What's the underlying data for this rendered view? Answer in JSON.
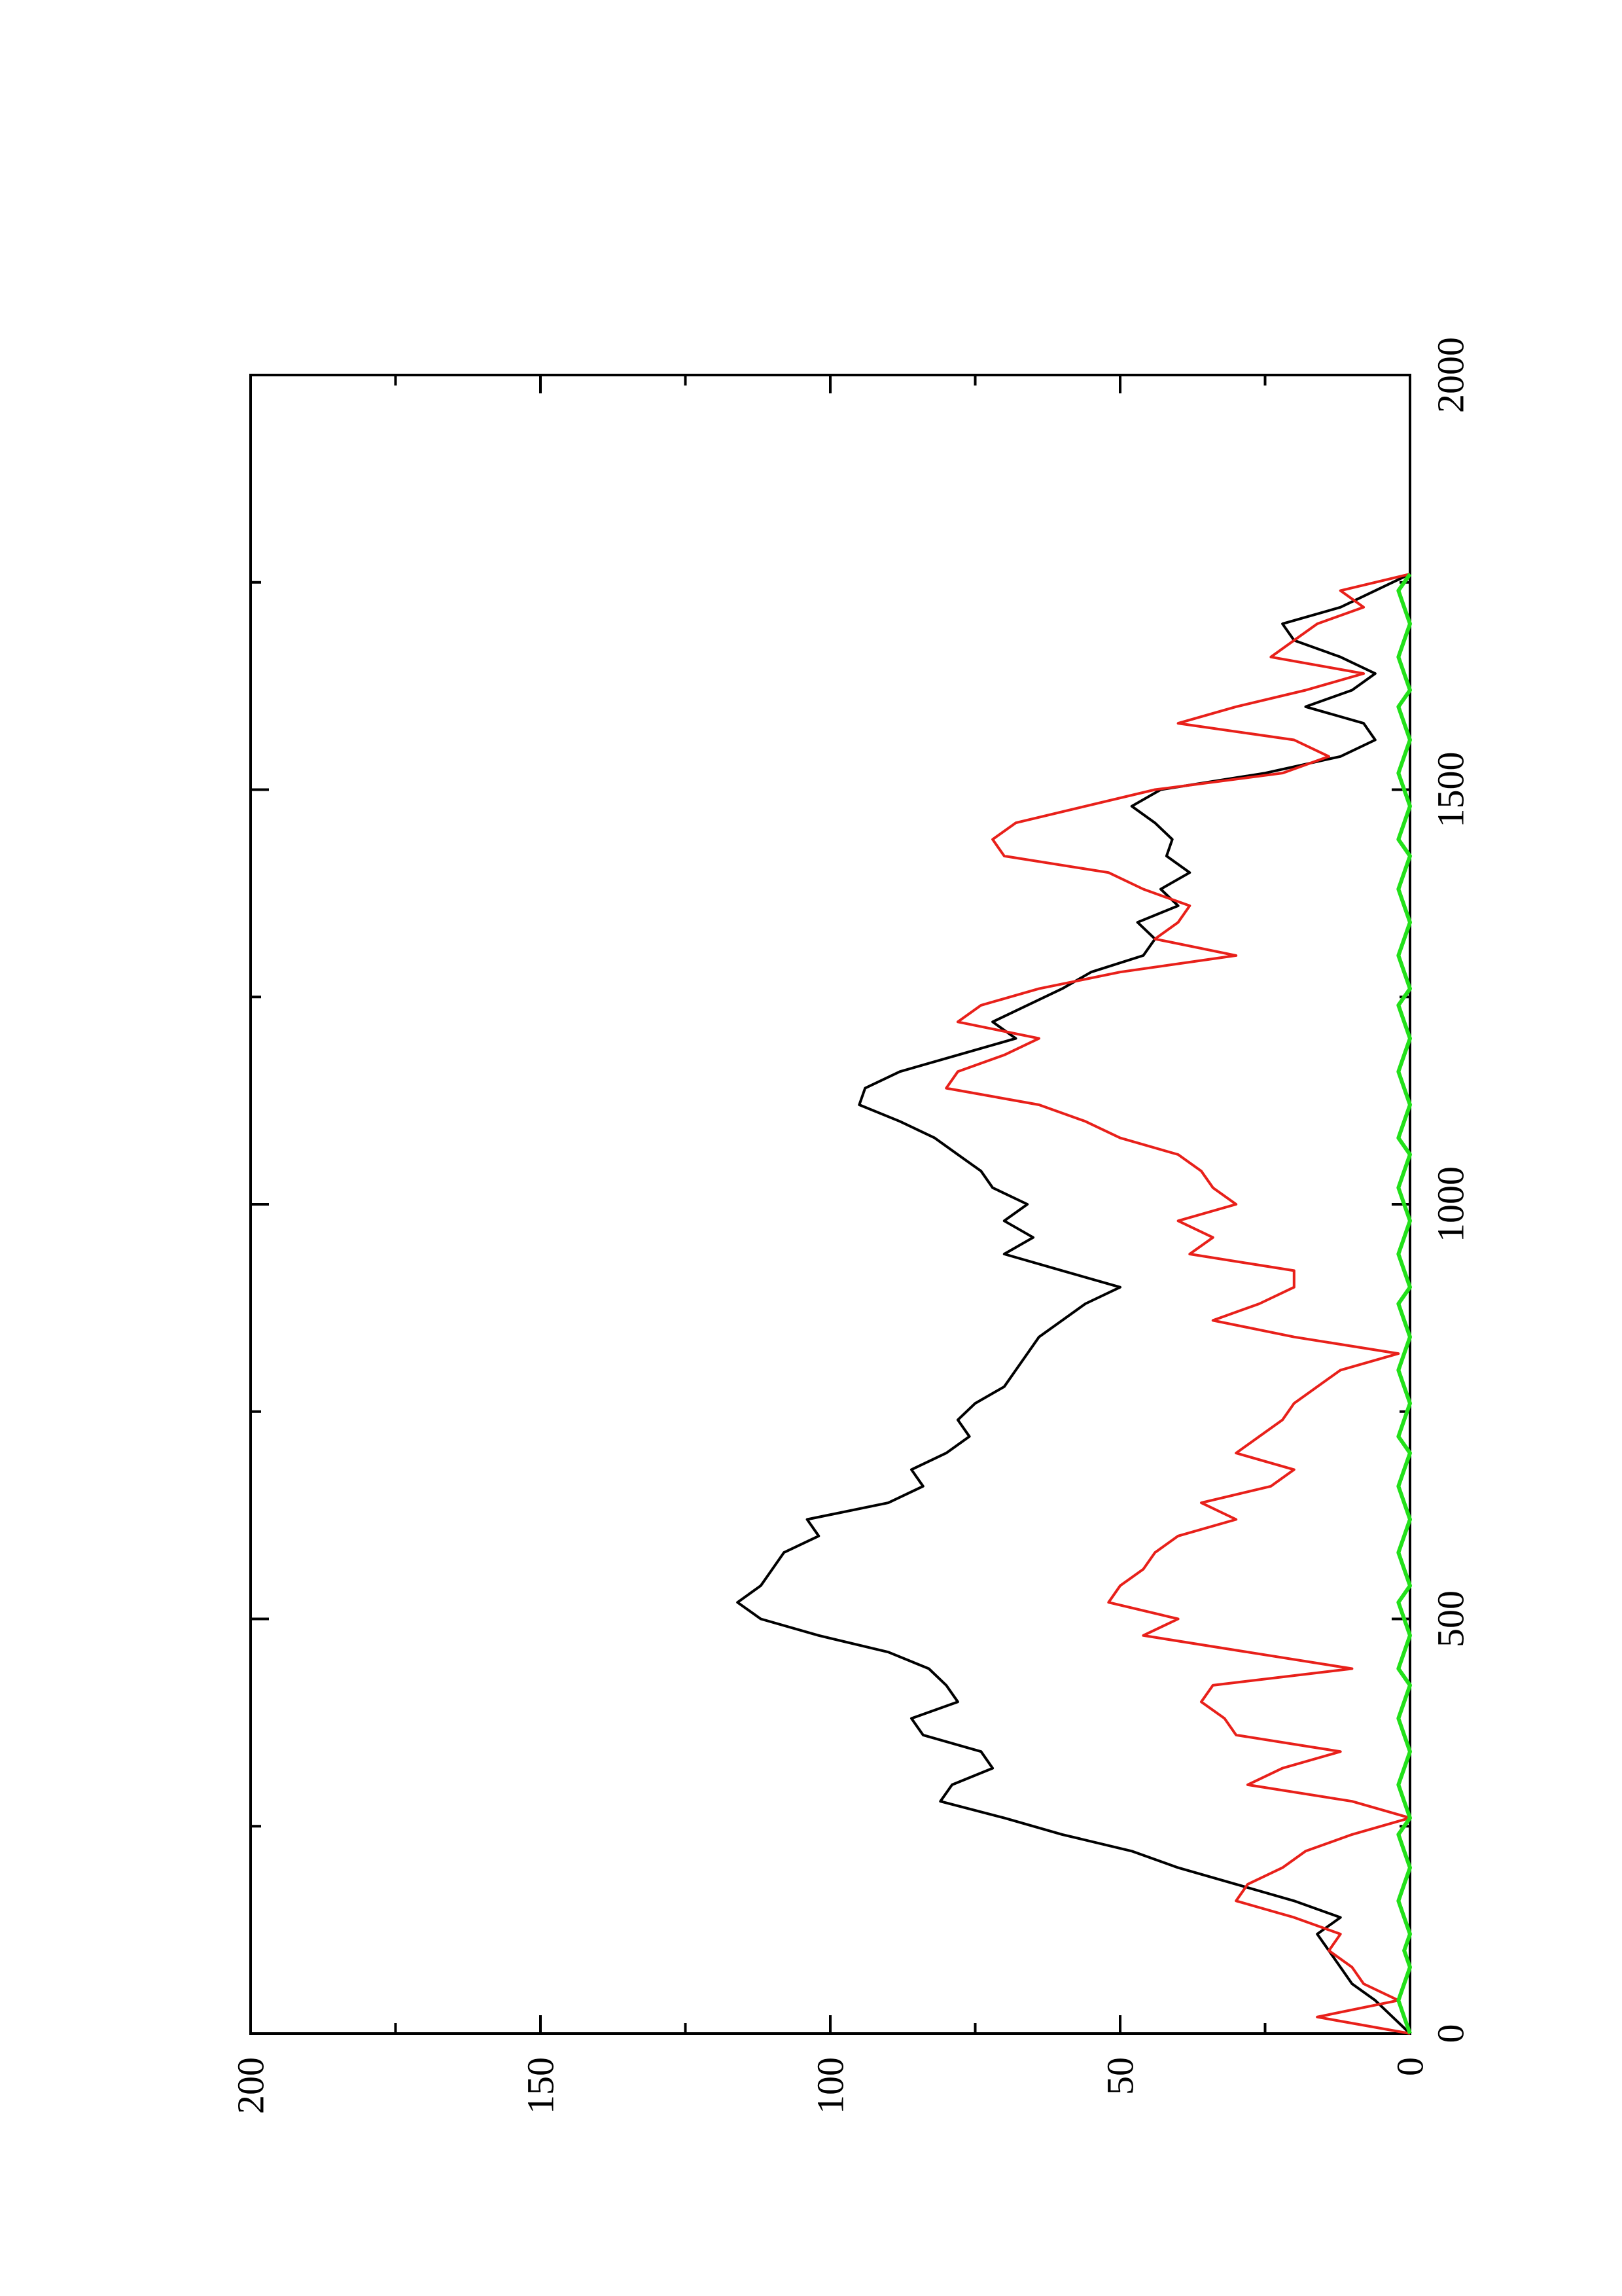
{
  "chart_data": {
    "type": "line",
    "orientation": "rotated-90-ccw",
    "title": "",
    "xlabel": "",
    "ylabel": "",
    "xlim": [
      0,
      2000
    ],
    "ylim": [
      0,
      200
    ],
    "x_ticks": [
      0,
      500,
      1000,
      1500,
      2000
    ],
    "y_ticks": [
      0,
      50,
      100,
      150,
      200
    ],
    "x_tick_labels": [
      "0",
      "500",
      "1000",
      "1500",
      "2000"
    ],
    "y_tick_labels": [
      "0",
      "50",
      "100",
      "150",
      "200"
    ],
    "grid": false,
    "legend": "none",
    "series": [
      {
        "color": "#000000",
        "x": [
          0,
          20,
          40,
          60,
          80,
          100,
          120,
          140,
          160,
          180,
          200,
          220,
          240,
          260,
          280,
          300,
          320,
          340,
          360,
          380,
          400,
          420,
          440,
          460,
          480,
          500,
          520,
          540,
          560,
          580,
          600,
          620,
          640,
          660,
          680,
          700,
          720,
          740,
          760,
          780,
          800,
          820,
          840,
          860,
          880,
          900,
          920,
          940,
          960,
          980,
          1000,
          1020,
          1040,
          1060,
          1080,
          1100,
          1120,
          1140,
          1160,
          1180,
          1200,
          1220,
          1240,
          1260,
          1280,
          1300,
          1320,
          1340,
          1360,
          1380,
          1400,
          1420,
          1440,
          1460,
          1480,
          1500,
          1520,
          1540,
          1560,
          1580,
          1600,
          1620,
          1640,
          1660,
          1680,
          1700,
          1720,
          1740,
          1760
        ],
        "y": [
          0,
          3,
          6,
          10,
          12,
          14,
          16,
          12,
          20,
          30,
          40,
          48,
          60,
          70,
          81,
          79,
          72,
          74,
          84,
          86,
          78,
          80,
          83,
          90,
          102,
          112,
          116,
          112,
          110,
          108,
          102,
          104,
          90,
          84,
          86,
          80,
          76,
          78,
          75,
          70,
          68,
          66,
          64,
          60,
          56,
          50,
          60,
          70,
          65,
          70,
          66,
          72,
          74,
          78,
          82,
          88,
          95,
          94,
          88,
          78,
          68,
          72,
          66,
          60,
          55,
          46,
          44,
          47,
          40,
          43,
          38,
          42,
          41,
          44,
          48,
          43,
          25,
          12,
          6,
          8,
          18,
          10,
          6,
          12,
          20,
          22,
          12,
          6,
          0
        ]
      },
      {
        "color": "#e8201a",
        "x": [
          0,
          20,
          40,
          60,
          80,
          100,
          120,
          140,
          160,
          180,
          200,
          220,
          240,
          260,
          280,
          300,
          320,
          340,
          360,
          380,
          400,
          420,
          440,
          460,
          480,
          500,
          520,
          540,
          560,
          580,
          600,
          620,
          640,
          660,
          680,
          700,
          720,
          740,
          760,
          780,
          800,
          820,
          840,
          860,
          880,
          900,
          920,
          940,
          960,
          980,
          1000,
          1020,
          1040,
          1060,
          1080,
          1100,
          1120,
          1140,
          1160,
          1180,
          1200,
          1220,
          1240,
          1260,
          1280,
          1300,
          1320,
          1340,
          1360,
          1380,
          1400,
          1420,
          1440,
          1460,
          1480,
          1500,
          1520,
          1540,
          1560,
          1580,
          1600,
          1620,
          1640,
          1660,
          1680,
          1700,
          1720,
          1740,
          1760
        ],
        "y": [
          0,
          16,
          2,
          8,
          10,
          14,
          12,
          20,
          30,
          28,
          22,
          18,
          10,
          0,
          10,
          28,
          22,
          12,
          30,
          32,
          36,
          34,
          10,
          28,
          46,
          40,
          52,
          50,
          46,
          44,
          40,
          30,
          36,
          24,
          20,
          30,
          26,
          22,
          20,
          16,
          12,
          2,
          20,
          34,
          26,
          20,
          20,
          38,
          34,
          40,
          30,
          34,
          36,
          40,
          50,
          56,
          64,
          80,
          78,
          70,
          64,
          78,
          74,
          64,
          50,
          30,
          44,
          40,
          38,
          46,
          52,
          70,
          72,
          68,
          56,
          44,
          22,
          14,
          20,
          40,
          30,
          18,
          8,
          24,
          20,
          16,
          8,
          12,
          0
        ]
      },
      {
        "color": "#22e01a",
        "x": [
          0,
          20,
          40,
          60,
          80,
          100,
          120,
          140,
          160,
          180,
          200,
          220,
          240,
          260,
          280,
          300,
          320,
          340,
          360,
          380,
          400,
          420,
          440,
          460,
          480,
          500,
          520,
          540,
          560,
          580,
          600,
          620,
          640,
          660,
          680,
          700,
          720,
          740,
          760,
          780,
          800,
          820,
          840,
          860,
          880,
          900,
          920,
          940,
          960,
          980,
          1000,
          1020,
          1040,
          1060,
          1080,
          1100,
          1120,
          1140,
          1160,
          1180,
          1200,
          1220,
          1240,
          1260,
          1280,
          1300,
          1320,
          1340,
          1360,
          1380,
          1400,
          1420,
          1440,
          1460,
          1480,
          1500,
          1520,
          1540,
          1560,
          1580,
          1600,
          1620,
          1640,
          1660,
          1680,
          1700,
          1720,
          1740,
          1760
        ],
        "y": [
          0,
          1,
          2,
          1,
          0,
          1,
          0,
          1,
          2,
          1,
          0,
          1,
          2,
          0,
          1,
          2,
          1,
          0,
          1,
          2,
          1,
          0,
          2,
          1,
          0,
          1,
          2,
          0,
          1,
          2,
          1,
          0,
          1,
          2,
          1,
          0,
          2,
          1,
          0,
          1,
          2,
          1,
          0,
          1,
          2,
          0,
          1,
          2,
          1,
          0,
          1,
          2,
          1,
          0,
          2,
          1,
          0,
          1,
          2,
          1,
          0,
          1,
          2,
          0,
          1,
          2,
          1,
          0,
          1,
          2,
          1,
          0,
          2,
          1,
          0,
          1,
          2,
          1,
          0,
          1,
          2,
          0,
          1,
          2,
          1,
          0,
          1,
          2,
          0
        ]
      }
    ]
  }
}
